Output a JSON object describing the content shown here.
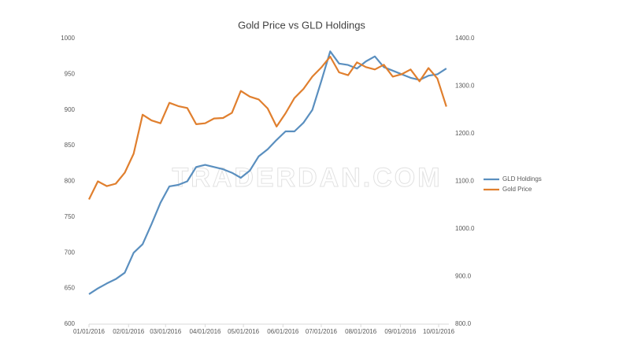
{
  "chart_data": {
    "type": "line",
    "title": "Gold Price vs GLD Holdings",
    "watermark": "TRADERDAN.COM",
    "x": [
      "2016-01-01",
      "2016-01-08",
      "2016-01-15",
      "2016-01-22",
      "2016-01-29",
      "2016-02-05",
      "2016-02-12",
      "2016-02-19",
      "2016-02-26",
      "2016-03-04",
      "2016-03-11",
      "2016-03-18",
      "2016-03-25",
      "2016-04-01",
      "2016-04-08",
      "2016-04-15",
      "2016-04-22",
      "2016-04-29",
      "2016-05-06",
      "2016-05-13",
      "2016-05-20",
      "2016-05-27",
      "2016-06-03",
      "2016-06-10",
      "2016-06-17",
      "2016-06-24",
      "2016-07-01",
      "2016-07-08",
      "2016-07-15",
      "2016-07-22",
      "2016-07-29",
      "2016-08-05",
      "2016-08-12",
      "2016-08-19",
      "2016-08-26",
      "2016-09-02",
      "2016-09-09",
      "2016-09-16",
      "2016-09-23",
      "2016-09-30",
      "2016-10-07"
    ],
    "series": [
      {
        "name": "GLD Holdings",
        "color": "#5a8fbf",
        "axis": "y",
        "values": [
          642,
          650,
          657,
          663,
          672,
          700,
          712,
          740,
          770,
          793,
          795,
          800,
          820,
          823,
          820,
          817,
          812,
          805,
          815,
          835,
          845,
          858,
          870,
          870,
          882,
          900,
          940,
          982,
          965,
          963,
          958,
          968,
          975,
          960,
          955,
          950,
          945,
          942,
          948,
          950,
          958
        ]
      },
      {
        "name": "Gold Price",
        "color": "#e07f2e",
        "axis": "y2",
        "values": [
          1062,
          1100,
          1090,
          1095,
          1118,
          1158,
          1240,
          1228,
          1222,
          1265,
          1258,
          1254,
          1220,
          1222,
          1232,
          1233,
          1244,
          1290,
          1278,
          1272,
          1253,
          1215,
          1243,
          1275,
          1294,
          1320,
          1339,
          1362,
          1329,
          1323,
          1350,
          1340,
          1335,
          1345,
          1320,
          1325,
          1335,
          1310,
          1338,
          1316,
          1257
        ]
      }
    ],
    "xlim": [
      "2016-01-01",
      "2016-10-09"
    ],
    "xticks": [
      {
        "value": "2016-01-01",
        "label": "01/01/2016"
      },
      {
        "value": "2016-02-01",
        "label": "02/01/2016"
      },
      {
        "value": "2016-03-01",
        "label": "03/01/2016"
      },
      {
        "value": "2016-04-01",
        "label": "04/01/2016"
      },
      {
        "value": "2016-05-01",
        "label": "05/01/2016"
      },
      {
        "value": "2016-06-01",
        "label": "06/01/2016"
      },
      {
        "value": "2016-07-01",
        "label": "07/01/2016"
      },
      {
        "value": "2016-08-01",
        "label": "08/01/2016"
      },
      {
        "value": "2016-09-01",
        "label": "09/01/2016"
      },
      {
        "value": "2016-10-01",
        "label": "10/01/2016"
      }
    ],
    "ylim": [
      600,
      1000
    ],
    "yticks": [
      600,
      650,
      700,
      750,
      800,
      850,
      900,
      950,
      1000
    ],
    "y2lim": [
      800,
      1400
    ],
    "y2ticks": [
      {
        "value": 800,
        "label": "800.0"
      },
      {
        "value": 900,
        "label": "900.0"
      },
      {
        "value": 1000,
        "label": "1000.0"
      },
      {
        "value": 1100,
        "label": "1100.0"
      },
      {
        "value": 1200,
        "label": "1200.0"
      },
      {
        "value": 1300,
        "label": "1300.0"
      },
      {
        "value": 1400,
        "label": "1400.0"
      }
    ],
    "legend": "right"
  }
}
